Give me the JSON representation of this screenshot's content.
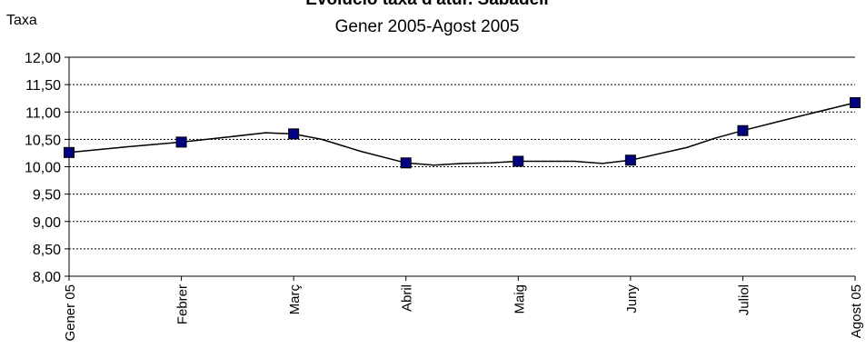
{
  "chart_data": {
    "type": "line",
    "title": "Evolució taxa d'atur. Sabadell",
    "subtitle": "Gener 2005-Agost 2005",
    "ylabel": "Taxa",
    "xlabel": "",
    "categories": [
      "Gener 05",
      "Febrer",
      "Març",
      "Abril",
      "Maig",
      "Juny",
      "Juliol",
      "Agost 05"
    ],
    "y_tick_labels": [
      "12,00",
      "11,50",
      "11,00",
      "10,50",
      "10,00",
      "9,50",
      "9,00",
      "8,50",
      "8,00"
    ],
    "y_ticks": [
      12,
      11.5,
      11,
      10.5,
      10,
      9.5,
      9,
      8.5,
      8
    ],
    "ylim": [
      8,
      12
    ],
    "grid": "horizontal dashed",
    "legend": "none",
    "series": [
      {
        "values": [
          10.26,
          10.45,
          10.6,
          10.07,
          10.1,
          10.12,
          10.66,
          11.17
        ],
        "curve_values": [
          [
            0,
            10.26
          ],
          [
            0.5,
            10.36
          ],
          [
            1,
            10.45
          ],
          [
            1.4,
            10.54
          ],
          [
            1.75,
            10.62
          ],
          [
            2,
            10.6
          ],
          [
            2.25,
            10.5
          ],
          [
            2.6,
            10.28
          ],
          [
            3,
            10.07
          ],
          [
            3.25,
            10.03
          ],
          [
            3.5,
            10.06
          ],
          [
            3.75,
            10.07
          ],
          [
            4,
            10.1
          ],
          [
            4.5,
            10.1
          ],
          [
            4.75,
            10.06
          ],
          [
            5,
            10.12
          ],
          [
            5.5,
            10.35
          ],
          [
            5.75,
            10.52
          ],
          [
            6,
            10.66
          ],
          [
            6.5,
            10.92
          ],
          [
            7,
            11.17
          ]
        ],
        "line_color": "#000000",
        "marker_color": "#000080"
      }
    ]
  }
}
